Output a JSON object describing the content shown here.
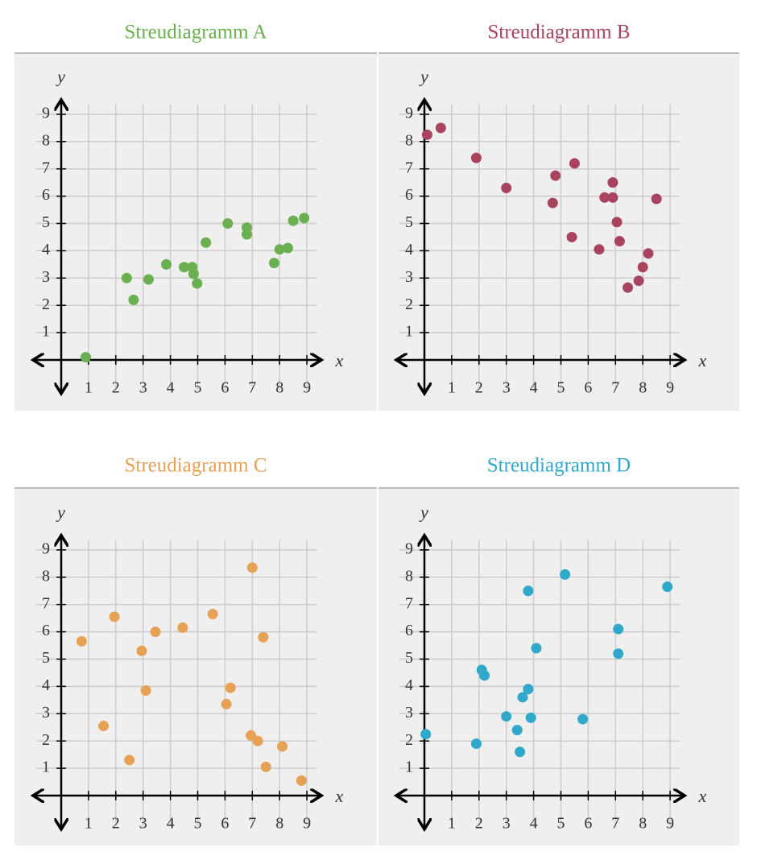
{
  "chart_data": [
    {
      "type": "scatter",
      "title": "Streudiagramm A",
      "color": "#6aaf50",
      "xlabel": "x",
      "ylabel": "y",
      "x": [
        0.9,
        2.4,
        2.65,
        3.2,
        3.85,
        4.5,
        4.8,
        4.85,
        4.98,
        5.3,
        6.1,
        6.8,
        6.8,
        7.8,
        8.0,
        8.3,
        8.5,
        8.9
      ],
      "y": [
        0.1,
        3.0,
        2.2,
        2.95,
        3.5,
        3.4,
        3.4,
        3.15,
        2.8,
        4.3,
        5.0,
        4.85,
        4.6,
        3.55,
        4.05,
        4.1,
        5.1,
        5.2
      ],
      "xlim": [
        -1.1,
        9.6
      ],
      "ylim": [
        -1.3,
        9.6
      ],
      "xticks": [
        1,
        2,
        3,
        4,
        5,
        6,
        7,
        8,
        9
      ],
      "yticks": [
        1,
        2,
        3,
        4,
        5,
        6,
        7,
        8,
        9
      ],
      "grid": true
    },
    {
      "type": "scatter",
      "title": "Streudiagramm B",
      "color": "#a8445f",
      "xlabel": "x",
      "ylabel": "y",
      "x": [
        0.1,
        0.6,
        1.9,
        3.0,
        4.7,
        4.8,
        5.5,
        5.4,
        6.4,
        6.6,
        6.9,
        6.9,
        7.05,
        7.15,
        7.45,
        7.85,
        8.0,
        8.2,
        8.5
      ],
      "y": [
        8.25,
        8.5,
        7.4,
        6.3,
        5.75,
        6.75,
        7.2,
        4.5,
        4.05,
        5.95,
        6.5,
        5.95,
        5.05,
        4.35,
        2.65,
        2.9,
        3.4,
        3.9,
        5.9
      ],
      "xlim": [
        -1.1,
        9.6
      ],
      "ylim": [
        -1.3,
        9.6
      ],
      "xticks": [
        1,
        2,
        3,
        4,
        5,
        6,
        7,
        8,
        9
      ],
      "yticks": [
        1,
        2,
        3,
        4,
        5,
        6,
        7,
        8,
        9
      ],
      "grid": true
    },
    {
      "type": "scatter",
      "title": "Streudiagramm C",
      "color": "#e6a155",
      "xlabel": "x",
      "ylabel": "y",
      "x": [
        0.75,
        1.55,
        1.95,
        2.5,
        2.95,
        3.1,
        3.45,
        4.45,
        5.55,
        6.05,
        6.2,
        7.0,
        6.95,
        7.2,
        7.4,
        7.5,
        8.1,
        8.8
      ],
      "y": [
        5.65,
        2.55,
        6.55,
        1.3,
        5.3,
        3.85,
        6.0,
        6.15,
        6.65,
        3.35,
        3.95,
        8.35,
        2.2,
        2.0,
        5.8,
        1.05,
        1.8,
        0.55
      ],
      "xlim": [
        -1.1,
        9.6
      ],
      "ylim": [
        -1.3,
        9.6
      ],
      "xticks": [
        1,
        2,
        3,
        4,
        5,
        6,
        7,
        8,
        9
      ],
      "yticks": [
        1,
        2,
        3,
        4,
        5,
        6,
        7,
        8,
        9
      ],
      "grid": true
    },
    {
      "type": "scatter",
      "title": "Streudiagramm D",
      "color": "#2fa8cc",
      "xlabel": "x",
      "ylabel": "y",
      "x": [
        0.05,
        1.9,
        2.1,
        2.2,
        3.0,
        3.4,
        3.5,
        3.6,
        3.8,
        3.8,
        3.9,
        4.1,
        5.15,
        5.8,
        7.1,
        7.1,
        8.9
      ],
      "y": [
        2.25,
        1.9,
        4.6,
        4.4,
        2.9,
        2.4,
        1.6,
        3.6,
        3.9,
        7.5,
        2.85,
        5.4,
        8.1,
        2.8,
        5.2,
        6.1,
        7.65
      ],
      "xlim": [
        -1.1,
        9.6
      ],
      "ylim": [
        -1.3,
        9.6
      ],
      "xticks": [
        1,
        2,
        3,
        4,
        5,
        6,
        7,
        8,
        9
      ],
      "yticks": [
        1,
        2,
        3,
        4,
        5,
        6,
        7,
        8,
        9
      ],
      "grid": true
    }
  ]
}
